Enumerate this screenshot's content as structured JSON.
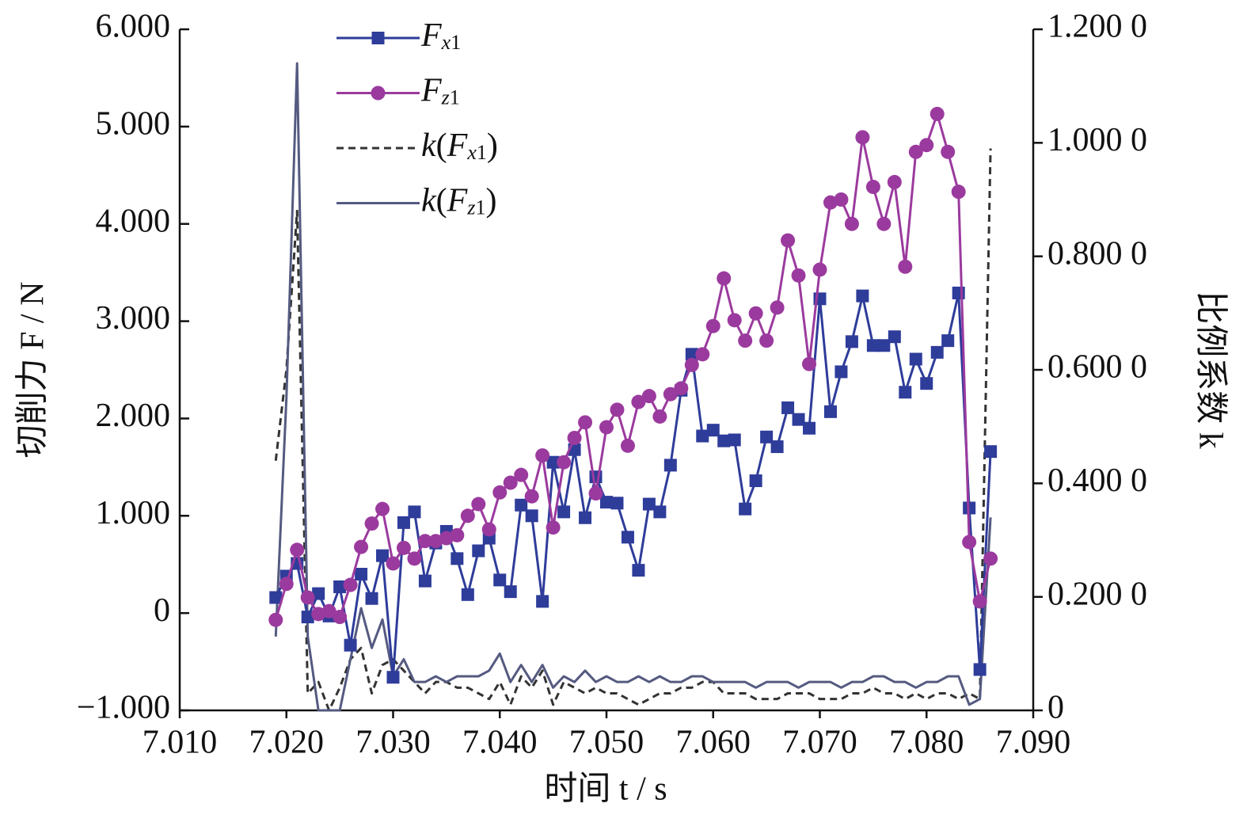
{
  "chart_data": {
    "type": "line",
    "xlabel": "时间 t / s",
    "ylabel": "切削力 F / N",
    "y2label": "比例系数 k",
    "xlim": [
      7.01,
      7.09
    ],
    "xticks": [
      {
        "value": 7.01,
        "label": "7.010"
      },
      {
        "value": 7.02,
        "label": "7.020"
      },
      {
        "value": 7.03,
        "label": "7.030"
      },
      {
        "value": 7.04,
        "label": "7.040"
      },
      {
        "value": 7.05,
        "label": "7.050"
      },
      {
        "value": 7.06,
        "label": "7.060"
      },
      {
        "value": 7.07,
        "label": "7.070"
      },
      {
        "value": 7.08,
        "label": "7.080"
      },
      {
        "value": 7.09,
        "label": "7.090"
      }
    ],
    "ylim": [
      -1,
      6
    ],
    "yticks": [
      {
        "value": -1,
        "label": "−1.000"
      },
      0,
      {
        "value": 1,
        "label": "1.000"
      },
      {
        "value": 2,
        "label": "2.000"
      },
      {
        "value": 3,
        "label": "3.000"
      },
      {
        "value": 4,
        "label": "4.000"
      },
      {
        "value": 5,
        "label": "5.000"
      },
      {
        "value": 6,
        "label": "6.000"
      }
    ],
    "y2lim": [
      0,
      1.2
    ],
    "y2ticks": [
      0,
      {
        "value": 0.2,
        "label": "0.200 0"
      },
      {
        "value": 0.4,
        "label": "0.400 0"
      },
      {
        "value": 0.6,
        "label": "0.600 0"
      },
      {
        "value": 0.8,
        "label": "0.800 0"
      },
      {
        "value": 1.0,
        "label": "1.000 0"
      },
      {
        "value": 1.2,
        "label": "1.200 0"
      }
    ],
    "legend": "upper left",
    "x": [
      7.019,
      7.02,
      7.021,
      7.022,
      7.023,
      7.024,
      7.025,
      7.026,
      7.027,
      7.028,
      7.029,
      7.03,
      7.031,
      7.032,
      7.033,
      7.034,
      7.035,
      7.036,
      7.037,
      7.038,
      7.039,
      7.04,
      7.041,
      7.042,
      7.043,
      7.044,
      7.045,
      7.046,
      7.047,
      7.048,
      7.049,
      7.05,
      7.051,
      7.052,
      7.053,
      7.054,
      7.055,
      7.056,
      7.057,
      7.058,
      7.059,
      7.06,
      7.061,
      7.062,
      7.063,
      7.064,
      7.065,
      7.066,
      7.067,
      7.068,
      7.069,
      7.07,
      7.071,
      7.072,
      7.073,
      7.074,
      7.075,
      7.076,
      7.077,
      7.078,
      7.079,
      7.08,
      7.081,
      7.082,
      7.083,
      7.084,
      7.085,
      7.086
    ],
    "series": [
      {
        "name": "Fx1",
        "color": "#2e3c9a",
        "marker": "square",
        "style": "solid",
        "values": [
          0.16,
          0.38,
          0.51,
          -0.04,
          0.2,
          -0.03,
          0.27,
          -0.33,
          0.4,
          0.15,
          0.59,
          -0.66,
          0.93,
          1.04,
          0.33,
          0.72,
          0.84,
          0.56,
          0.19,
          0.64,
          0.77,
          0.34,
          0.22,
          1.11,
          1.0,
          0.12,
          1.55,
          1.04,
          1.68,
          0.98,
          1.4,
          1.14,
          1.13,
          0.78,
          0.44,
          1.12,
          1.04,
          1.52,
          2.29,
          2.66,
          1.82,
          1.88,
          1.77,
          1.78,
          1.07,
          1.36,
          1.81,
          1.71,
          2.11,
          1.99,
          1.9,
          3.23,
          2.07,
          2.48,
          2.79,
          3.26,
          2.75,
          2.75,
          2.84,
          2.27,
          2.61,
          2.36,
          2.68,
          2.8,
          3.29,
          1.08,
          -0.58,
          1.66
        ]
      },
      {
        "name": "Fz1",
        "color": "#9b3a9e",
        "marker": "circle",
        "style": "solid",
        "values": [
          -0.07,
          0.3,
          0.65,
          0.16,
          -0.01,
          0.02,
          -0.04,
          0.29,
          0.68,
          0.92,
          1.07,
          0.51,
          0.67,
          0.56,
          0.74,
          0.74,
          0.77,
          0.8,
          1.0,
          1.12,
          0.86,
          1.24,
          1.34,
          1.42,
          1.2,
          1.62,
          0.88,
          1.55,
          1.8,
          1.96,
          1.23,
          1.91,
          2.09,
          1.72,
          2.17,
          2.23,
          2.02,
          2.25,
          2.31,
          2.55,
          2.66,
          2.95,
          3.44,
          3.01,
          2.8,
          3.08,
          2.8,
          3.14,
          3.83,
          3.47,
          2.56,
          3.53,
          4.22,
          4.25,
          4.0,
          4.89,
          4.38,
          4.0,
          4.43,
          3.56,
          4.74,
          4.81,
          5.13,
          4.74,
          4.33,
          0.73,
          0.12,
          0.56
        ]
      },
      {
        "name": "k(Fx1)",
        "color": "#333333",
        "marker": "none",
        "style": "dashed",
        "axis": "y2",
        "values": [
          0.44,
          0.6,
          0.88,
          0.03,
          0.05,
          0.0,
          0.04,
          0.09,
          0.11,
          0.03,
          0.08,
          0.09,
          0.07,
          0.05,
          0.03,
          0.05,
          0.05,
          0.04,
          0.04,
          0.03,
          0.02,
          0.05,
          0.01,
          0.06,
          0.04,
          0.07,
          0.01,
          0.05,
          0.04,
          0.03,
          0.04,
          0.03,
          0.03,
          0.02,
          0.01,
          0.02,
          0.03,
          0.03,
          0.04,
          0.04,
          0.05,
          0.05,
          0.03,
          0.03,
          0.03,
          0.02,
          0.02,
          0.02,
          0.03,
          0.03,
          0.03,
          0.02,
          0.02,
          0.02,
          0.03,
          0.03,
          0.04,
          0.03,
          0.03,
          0.02,
          0.03,
          0.02,
          0.03,
          0.03,
          0.02,
          0.03,
          0.02,
          0.99
        ]
      },
      {
        "name": "k(Fz1)",
        "color": "#555a80",
        "marker": "none",
        "style": "solid",
        "axis": "y2",
        "values": [
          0.13,
          0.55,
          1.14,
          0.13,
          0.0,
          0.0,
          0.0,
          0.09,
          0.18,
          0.11,
          0.16,
          0.06,
          0.09,
          0.05,
          0.05,
          0.06,
          0.05,
          0.06,
          0.06,
          0.06,
          0.07,
          0.1,
          0.05,
          0.08,
          0.05,
          0.08,
          0.04,
          0.06,
          0.05,
          0.07,
          0.05,
          0.06,
          0.05,
          0.05,
          0.06,
          0.05,
          0.06,
          0.05,
          0.05,
          0.06,
          0.06,
          0.05,
          0.05,
          0.05,
          0.05,
          0.04,
          0.05,
          0.05,
          0.05,
          0.04,
          0.05,
          0.05,
          0.05,
          0.04,
          0.05,
          0.05,
          0.06,
          0.06,
          0.05,
          0.05,
          0.04,
          0.05,
          0.05,
          0.06,
          0.06,
          0.01,
          0.02,
          0.34
        ]
      }
    ]
  }
}
